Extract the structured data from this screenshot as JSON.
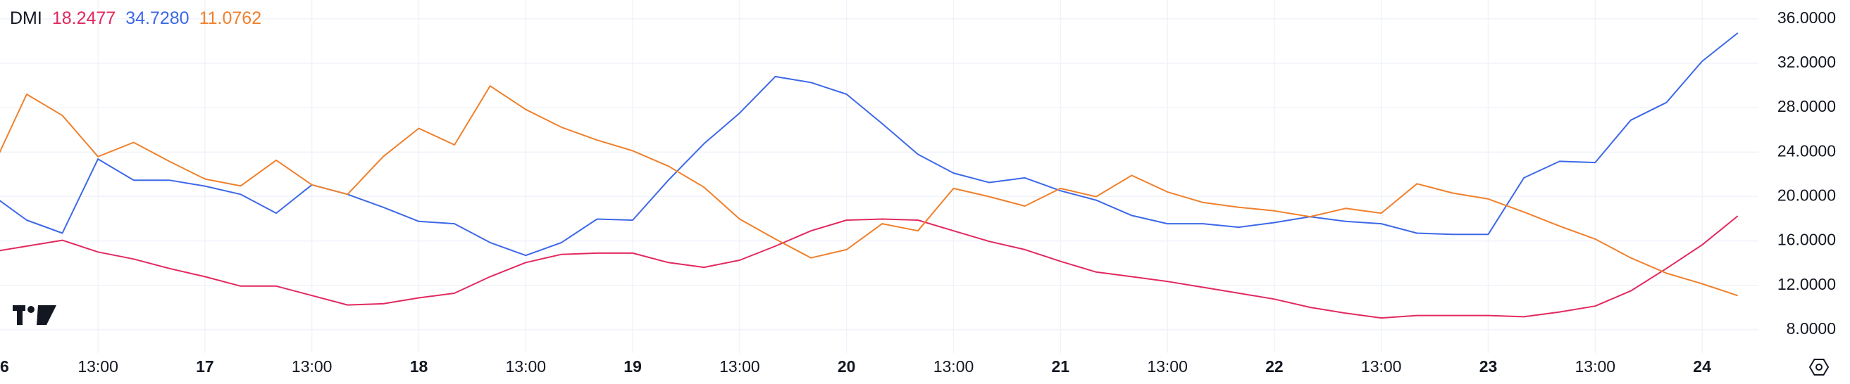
{
  "chart_data": {
    "type": "line",
    "title": "DMI",
    "categories": [
      "6",
      null,
      null,
      "13:00",
      null,
      null,
      "17",
      null,
      null,
      "13:00",
      null,
      null,
      "18",
      null,
      null,
      "13:00",
      null,
      null,
      "19",
      null,
      null,
      "13:00",
      null,
      null,
      "20",
      null,
      null,
      "13:00",
      null,
      null,
      "21",
      null,
      null,
      "13:00",
      null,
      null,
      "22",
      null,
      null,
      "13:00",
      null,
      null,
      "23",
      null,
      null,
      "13:00",
      null,
      null,
      "24",
      null
    ],
    "series": [
      {
        "name": null,
        "color": "#e2295f",
        "values": [
          15.0,
          15.53,
          16.06,
          15.0,
          14.37,
          13.52,
          12.78,
          11.93,
          11.93,
          11.08,
          10.23,
          10.34,
          10.87,
          11.29,
          12.78,
          14.05,
          14.79,
          14.9,
          14.9,
          14.05,
          13.62,
          14.26,
          15.53,
          16.91,
          17.87,
          17.97,
          17.87,
          16.91,
          15.96,
          15.22,
          14.16,
          13.2,
          12.78,
          12.35,
          11.82,
          11.29,
          10.76,
          10.02,
          9.49,
          9.06,
          9.28,
          9.28,
          9.28,
          9.17,
          9.6,
          10.13,
          11.5,
          13.52,
          15.64,
          18.2477
        ]
      },
      {
        "name": null,
        "color": "#3d68e8",
        "values": [
          20.2,
          17.87,
          16.7,
          23.38,
          21.47,
          21.47,
          20.94,
          20.2,
          18.5,
          21.05,
          20.2,
          19.03,
          17.76,
          17.55,
          15.85,
          14.69,
          15.85,
          17.97,
          17.87,
          21.47,
          24.76,
          27.52,
          30.8,
          30.27,
          29.21,
          26.56,
          23.8,
          22.11,
          21.26,
          21.68,
          20.52,
          19.67,
          18.29,
          17.55,
          17.55,
          17.23,
          17.65,
          18.18,
          17.76,
          17.55,
          16.7,
          16.59,
          16.59,
          21.68,
          23.17,
          23.06,
          26.88,
          28.47,
          32.18,
          34.728
        ],
        "value_labels": [
          null,
          null,
          null,
          null,
          null,
          null,
          null,
          null,
          null,
          null,
          null,
          null,
          null,
          null,
          null,
          null,
          null,
          null,
          null,
          null,
          null,
          null,
          null,
          null,
          null,
          null,
          null,
          null,
          null,
          null,
          null,
          null,
          null,
          null,
          null,
          null,
          null,
          null,
          null,
          null,
          null,
          null,
          null,
          null,
          null,
          null,
          null,
          null,
          null,
          "34.7280"
        ]
      },
      {
        "name": null,
        "color": "#f0802c",
        "values": [
          22.32,
          29.21,
          27.3,
          23.59,
          24.87,
          23.17,
          21.58,
          20.95,
          23.27,
          21.05,
          20.2,
          23.59,
          26.14,
          24.65,
          29.96,
          27.84,
          26.24,
          25.08,
          24.12,
          22.74,
          20.84,
          17.97,
          16.17,
          14.47,
          15.22,
          17.55,
          16.91,
          20.73,
          19.99,
          19.14,
          20.73,
          19.99,
          21.9,
          20.41,
          19.46,
          19.03,
          18.71,
          18.18,
          18.93,
          18.5,
          21.15,
          20.31,
          19.78,
          18.61,
          17.34,
          16.17,
          14.47,
          13.09,
          12.14,
          11.0762
        ]
      }
    ],
    "ylim": [
      5.9,
      37.7
    ],
    "yticks": [
      {
        "value": 8,
        "label": "8.0000"
      },
      {
        "value": 12,
        "label": "12.0000"
      },
      {
        "value": 16,
        "label": "16.0000"
      },
      {
        "value": 20,
        "label": "20.0000"
      },
      {
        "value": 24,
        "label": "24.0000"
      },
      {
        "value": 28,
        "label": "28.0000"
      },
      {
        "value": 32,
        "label": "32.0000"
      },
      {
        "value": 36,
        "label": "36.0000"
      }
    ],
    "grid": true
  }
}
